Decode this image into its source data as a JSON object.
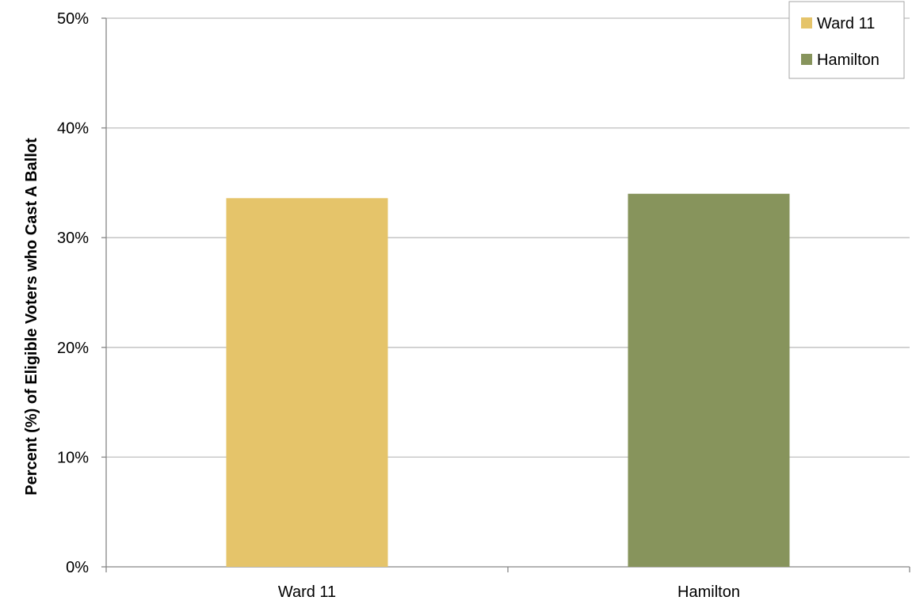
{
  "chart_data": {
    "type": "bar",
    "title": "",
    "xlabel": "",
    "ylabel": "Percent (%) of Eligible Voters who Cast A Ballot",
    "categories": [
      "Ward 11",
      "Hamilton"
    ],
    "values": [
      33.6,
      34.0
    ],
    "colors": [
      "#E5C46A",
      "#87945C"
    ],
    "ylim": [
      0,
      50
    ],
    "yticks": [
      0,
      10,
      20,
      30,
      40,
      50
    ],
    "ytick_labels": [
      "0%",
      "10%",
      "20%",
      "30%",
      "40%",
      "50%"
    ],
    "grid": true,
    "gridline_color": "#BFBFBF",
    "legend": {
      "placement": "top-right",
      "entries": [
        {
          "label": "Ward 11",
          "color": "#E5C46A"
        },
        {
          "label": "Hamilton",
          "color": "#87945C"
        }
      ]
    }
  }
}
